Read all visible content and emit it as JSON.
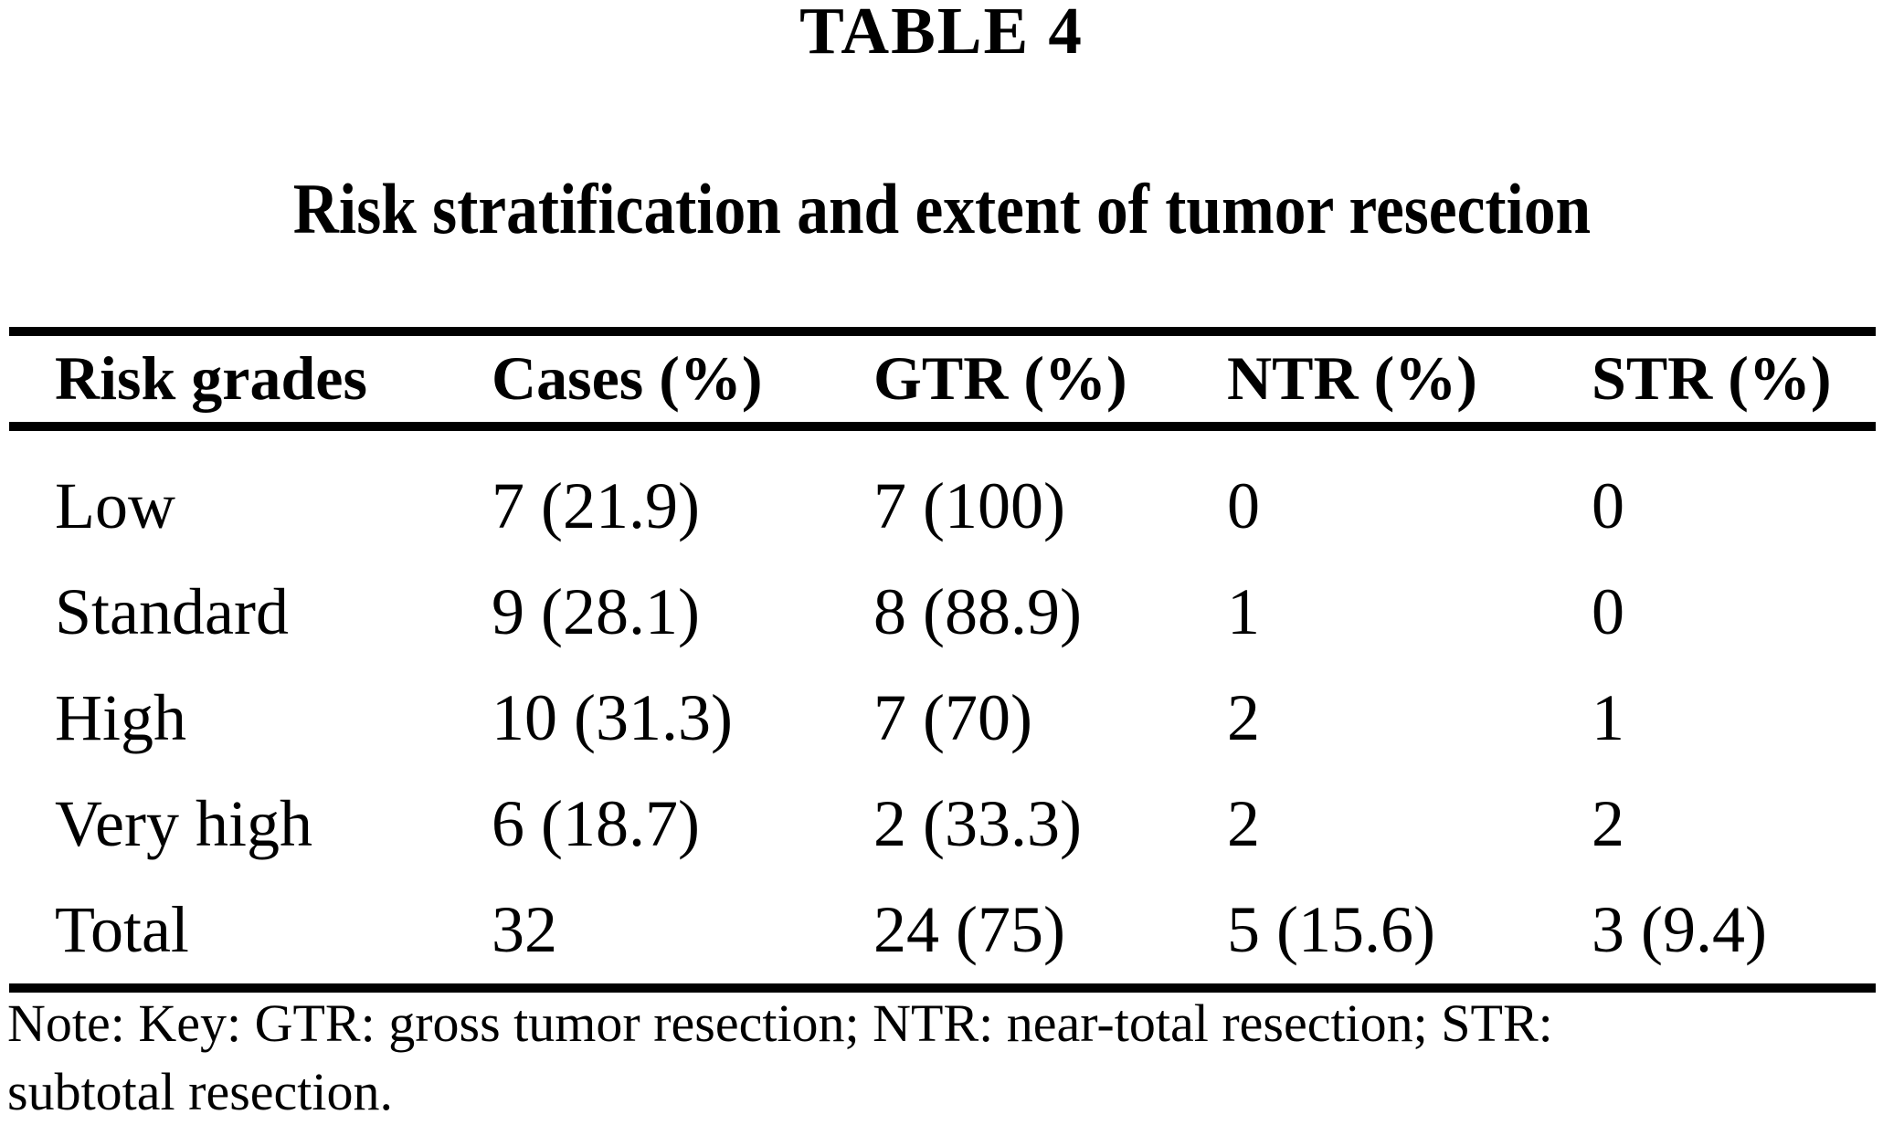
{
  "heading": {
    "label": "TABLE 4",
    "title": "Risk stratification and extent of tumor resection"
  },
  "table": {
    "headers": [
      "Risk grades",
      "Cases (%)",
      "GTR (%)",
      "NTR (%)",
      "STR (%)"
    ],
    "rows": [
      {
        "cells": [
          "Low",
          "7 (21.9)",
          "7 (100)",
          "0",
          "0"
        ]
      },
      {
        "cells": [
          "Standard",
          "9 (28.1)",
          "8 (88.9)",
          "1",
          "0"
        ]
      },
      {
        "cells": [
          "High",
          "10 (31.3)",
          "7 (70)",
          "2",
          "1"
        ]
      },
      {
        "cells": [
          "Very high",
          "6 (18.7)",
          "2 (33.3)",
          "2",
          "2"
        ]
      },
      {
        "cells": [
          "Total",
          "32",
          "24 (75)",
          "5 (15.6)",
          "3 (9.4)"
        ]
      }
    ]
  },
  "note": {
    "lines": [
      "Note: Key: GTR: gross tumor resection; NTR: near-total resection; STR:",
      "subtotal resection."
    ]
  },
  "colors": {
    "background": "#ffffff",
    "text": "#000000",
    "rule": "#000000"
  }
}
